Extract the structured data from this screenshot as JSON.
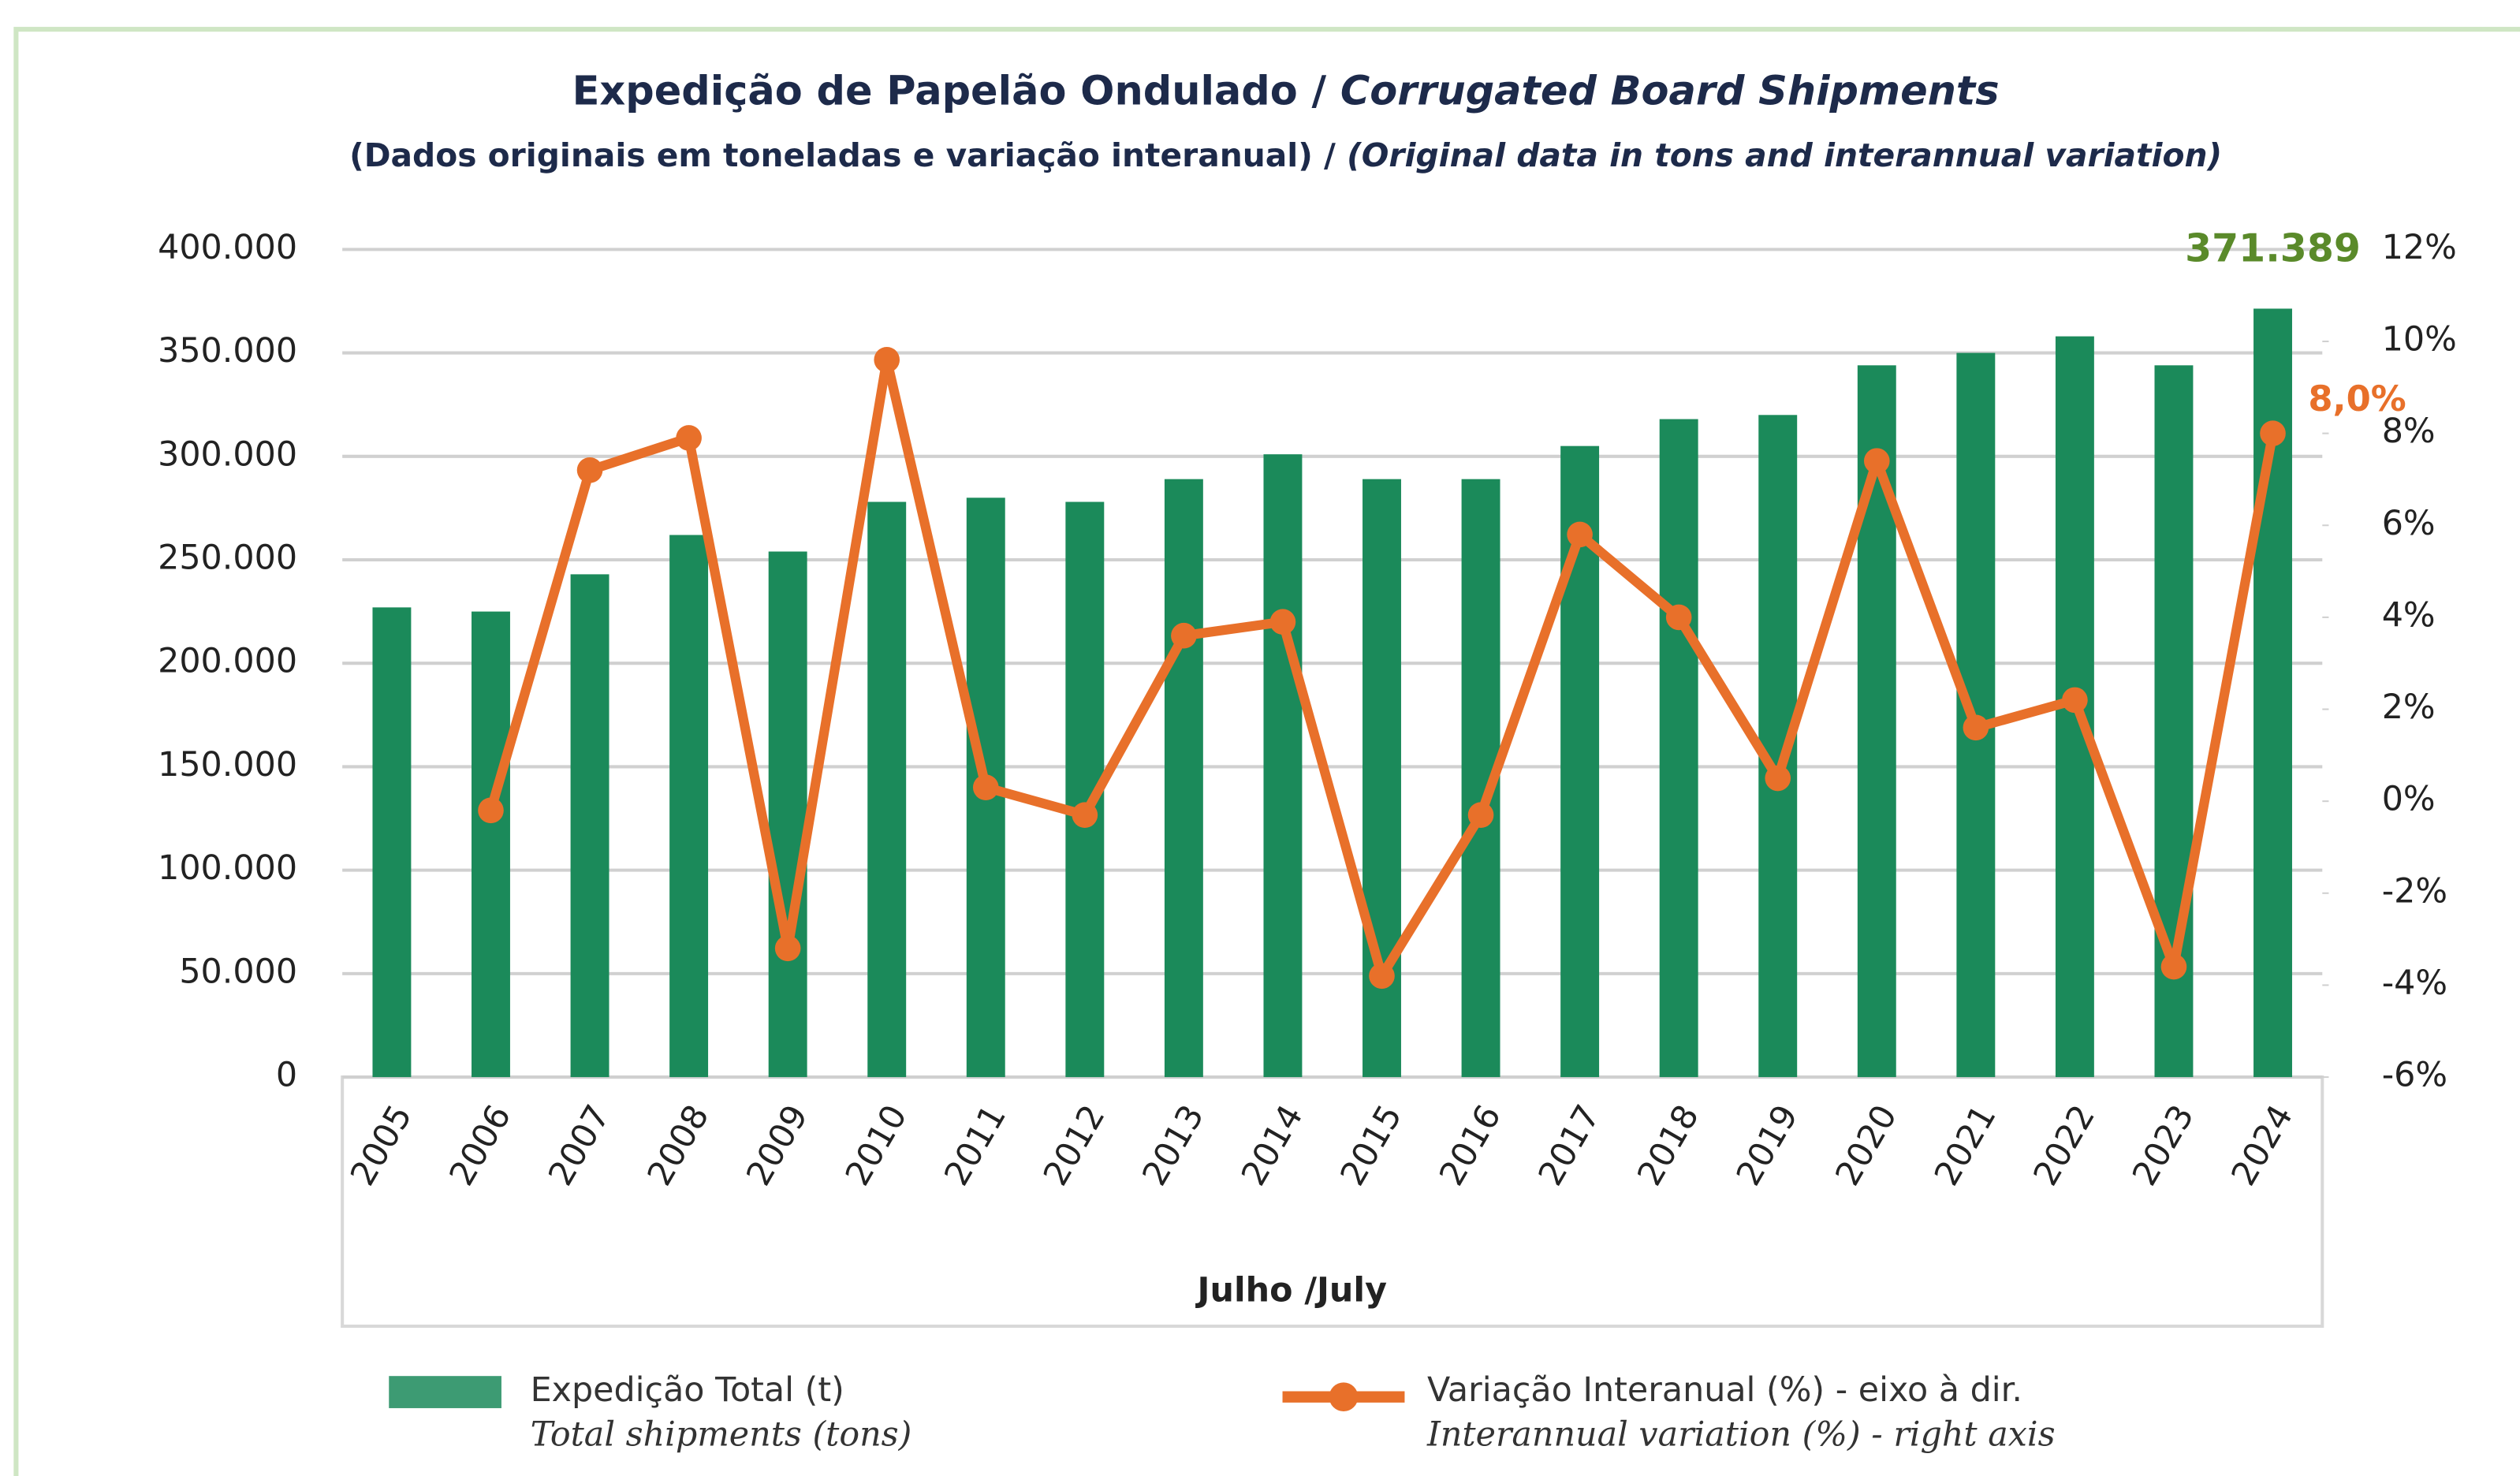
{
  "chart_data": {
    "type": "bar_line",
    "title": [
      "Expedição de Papelão Ondulado / ",
      "Corrugated Board Shipments"
    ],
    "subtitle": [
      "(Dados originais em toneladas e variação interanual) / ",
      "(Original data in tons and interannual variation)"
    ],
    "xlabel": "Julho /July",
    "categories": [
      "2005",
      "2006",
      "2007",
      "2008",
      "2009",
      "2010",
      "2011",
      "2012",
      "2013",
      "2014",
      "2015",
      "2016",
      "2017",
      "2018",
      "2019",
      "2020",
      "2021",
      "2022",
      "2023",
      "2024"
    ],
    "series": [
      {
        "name": "Expedição Total (t)",
        "name_en": "Total shipments (tons)",
        "type": "bar",
        "color": "#1b8a5a",
        "values": [
          227000,
          225000,
          243000,
          262000,
          254000,
          278000,
          280000,
          278000,
          289000,
          301000,
          289000,
          289000,
          305000,
          318000,
          320000,
          344000,
          350000,
          358000,
          344000,
          371389
        ],
        "value_labels": [
          null,
          null,
          null,
          null,
          null,
          null,
          null,
          null,
          null,
          null,
          null,
          null,
          null,
          null,
          null,
          null,
          null,
          null,
          null,
          "371.389"
        ],
        "label_color": "#5a8a2a"
      },
      {
        "name": "Variação Interanual (%) - eixo à dir.",
        "name_en": "Interannual variation (%) - right axis",
        "type": "line",
        "axis": "y2",
        "color": "#e8702a",
        "values": [
          null,
          -0.2,
          7.2,
          7.9,
          -3.2,
          9.6,
          0.3,
          -0.3,
          3.6,
          3.9,
          -3.8,
          -0.3,
          5.8,
          4.0,
          0.5,
          7.4,
          1.6,
          2.2,
          -3.6,
          8.0
        ],
        "value_labels": [
          null,
          null,
          null,
          null,
          null,
          null,
          null,
          null,
          null,
          null,
          null,
          null,
          null,
          null,
          null,
          null,
          null,
          null,
          null,
          "8,0%"
        ]
      }
    ],
    "ylim": [
      0,
      400000
    ],
    "yticks": [
      {
        "value": 0,
        "label": "0"
      },
      {
        "value": 50000,
        "label": "50.000"
      },
      {
        "value": 100000,
        "label": "100.000"
      },
      {
        "value": 150000,
        "label": "150.000"
      },
      {
        "value": 200000,
        "label": "200.000"
      },
      {
        "value": 250000,
        "label": "250.000"
      },
      {
        "value": 300000,
        "label": "300.000"
      },
      {
        "value": 350000,
        "label": "350.000"
      },
      {
        "value": 400000,
        "label": "400.000"
      }
    ],
    "y2lim": [
      -6,
      12
    ],
    "y2ticks": [
      {
        "value": -6,
        "label": "-6%"
      },
      {
        "value": -4,
        "label": "-4%"
      },
      {
        "value": -2,
        "label": "-2%"
      },
      {
        "value": 0,
        "label": "0%"
      },
      {
        "value": 2,
        "label": "2%"
      },
      {
        "value": 4,
        "label": "4%"
      },
      {
        "value": 6,
        "label": "6%"
      },
      {
        "value": 8,
        "label": "8%"
      },
      {
        "value": 10,
        "label": "10%"
      },
      {
        "value": 12,
        "label": "12%"
      }
    ],
    "grid": true
  }
}
